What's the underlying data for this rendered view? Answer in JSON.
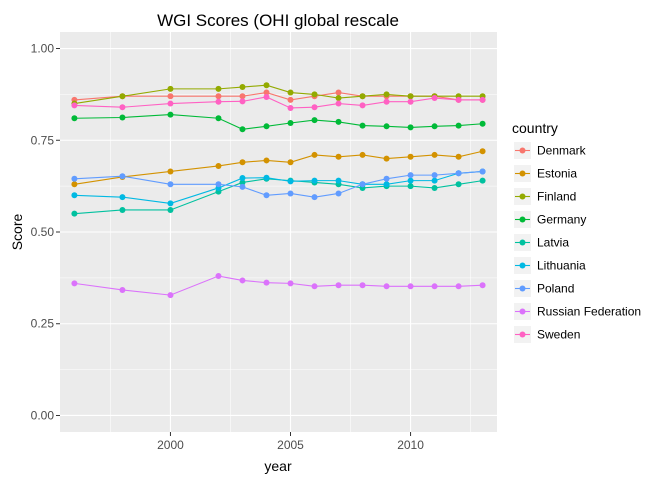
{
  "chart_data": {
    "type": "line",
    "title": "WGI Scores (OHI global rescale",
    "xlabel": "year",
    "ylabel": "Score",
    "xlim": [
      1995.4,
      2013.6
    ],
    "ylim": [
      -0.045,
      1.045
    ],
    "x_ticks": [
      2000,
      2005,
      2010
    ],
    "x_tick_labels": [
      "2000",
      "2005",
      "2010"
    ],
    "y_ticks": [
      0.0,
      0.25,
      0.5,
      0.75,
      1.0
    ],
    "y_tick_labels": [
      "0.00",
      "0.25",
      "0.50",
      "0.75",
      "1.00"
    ],
    "grid": true,
    "legend": {
      "title": "country",
      "placement": "right"
    },
    "x": [
      1996,
      1998,
      2000,
      2002,
      2003,
      2004,
      2005,
      2006,
      2007,
      2008,
      2009,
      2010,
      2011,
      2012,
      2013
    ],
    "series": [
      {
        "name": "Denmark",
        "color": "#F8766D",
        "values": [
          0.86,
          0.87,
          0.87,
          0.87,
          0.87,
          0.88,
          0.86,
          0.87,
          0.88,
          0.87,
          0.87,
          0.87,
          0.87,
          0.86,
          0.86
        ]
      },
      {
        "name": "Estonia",
        "color": "#D39200",
        "values": [
          0.63,
          0.65,
          0.665,
          0.68,
          0.69,
          0.695,
          0.69,
          0.71,
          0.705,
          0.71,
          0.7,
          0.705,
          0.71,
          0.705,
          0.72
        ]
      },
      {
        "name": "Finland",
        "color": "#93AA00",
        "values": [
          0.85,
          0.87,
          0.89,
          0.89,
          0.895,
          0.9,
          0.88,
          0.875,
          0.865,
          0.87,
          0.875,
          0.87,
          0.87,
          0.87,
          0.87
        ]
      },
      {
        "name": "Germany",
        "color": "#00BA38",
        "values": [
          0.81,
          0.812,
          0.82,
          0.81,
          0.78,
          0.788,
          0.797,
          0.805,
          0.8,
          0.79,
          0.788,
          0.785,
          0.788,
          0.79,
          0.795
        ]
      },
      {
        "name": "Latvia",
        "color": "#00C19F",
        "values": [
          0.55,
          0.56,
          0.56,
          0.61,
          0.635,
          0.645,
          0.64,
          0.635,
          0.63,
          0.62,
          0.625,
          0.625,
          0.62,
          0.63,
          0.64
        ]
      },
      {
        "name": "Lithuania",
        "color": "#00B9E3",
        "values": [
          0.6,
          0.595,
          0.578,
          0.62,
          0.647,
          0.648,
          0.638,
          0.64,
          0.64,
          0.63,
          0.63,
          0.64,
          0.64,
          0.66,
          0.665
        ]
      },
      {
        "name": "Poland",
        "color": "#619CFF",
        "values": [
          0.645,
          0.652,
          0.63,
          0.63,
          0.623,
          0.6,
          0.605,
          0.595,
          0.605,
          0.63,
          0.645,
          0.655,
          0.655,
          0.66,
          0.665
        ]
      },
      {
        "name": "Russian Federation",
        "color": "#DB72FB",
        "values": [
          0.36,
          0.342,
          0.328,
          0.38,
          0.368,
          0.362,
          0.36,
          0.352,
          0.355,
          0.355,
          0.352,
          0.352,
          0.352,
          0.352,
          0.355
        ]
      },
      {
        "name": "Sweden",
        "color": "#FF61C3",
        "values": [
          0.845,
          0.84,
          0.85,
          0.855,
          0.856,
          0.868,
          0.838,
          0.84,
          0.85,
          0.845,
          0.855,
          0.855,
          0.865,
          0.86,
          0.86
        ]
      }
    ]
  }
}
